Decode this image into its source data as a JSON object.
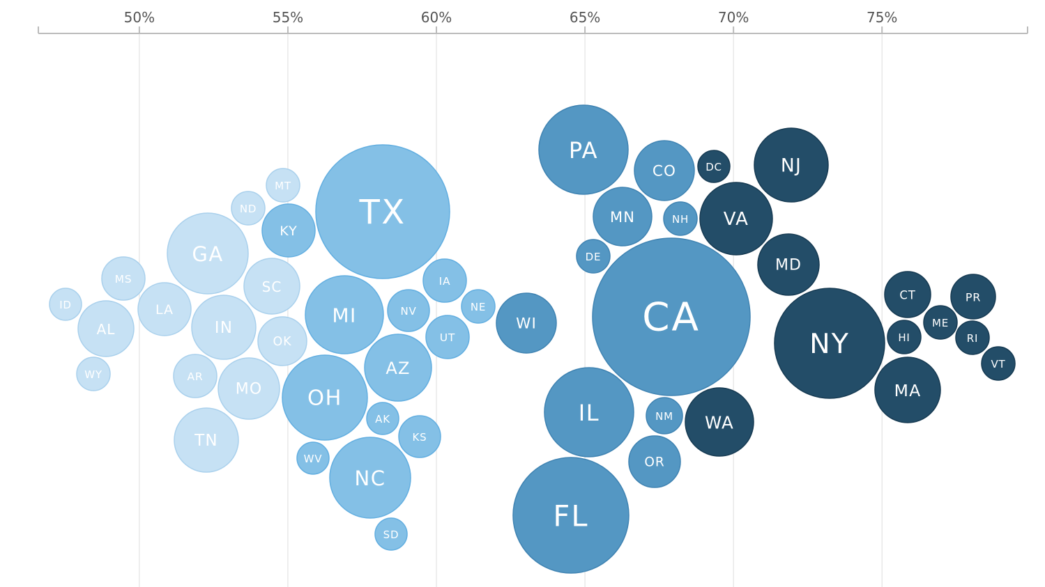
{
  "chart_data": {
    "type": "bubble",
    "title": "",
    "xlabel": "",
    "ylabel": "",
    "x_unit": "%",
    "xlim": [
      46.6,
      79.9
    ],
    "x_ticks": [
      50,
      55,
      60,
      65,
      70,
      75
    ],
    "x_tick_labels": [
      "50%",
      "55%",
      "60%",
      "65%",
      "70%",
      "75%"
    ],
    "grid": true,
    "legend": "none",
    "color_tiers": {
      "lightest": "#c6e1f4",
      "light": "#84c0e6",
      "medium": "#5497c3",
      "dark": "#234d68"
    },
    "points": [
      {
        "label": "ID",
        "x": 47.7,
        "size": 23,
        "tier": "lightest"
      },
      {
        "label": "MS",
        "x": 49.1,
        "size": 31,
        "tier": "lightest"
      },
      {
        "label": "AL",
        "x": 49.0,
        "size": 40,
        "tier": "lightest"
      },
      {
        "label": "WY",
        "x": 48.8,
        "size": 24,
        "tier": "lightest"
      },
      {
        "label": "LA",
        "x": 50.8,
        "size": 38,
        "tier": "lightest"
      },
      {
        "label": "GA",
        "x": 52.3,
        "size": 58,
        "tier": "lightest"
      },
      {
        "label": "IN",
        "x": 52.6,
        "size": 46,
        "tier": "lightest"
      },
      {
        "label": "AR",
        "x": 51.8,
        "size": 31,
        "tier": "lightest"
      },
      {
        "label": "MO",
        "x": 53.5,
        "size": 44,
        "tier": "lightest"
      },
      {
        "label": "TN",
        "x": 52.2,
        "size": 46,
        "tier": "lightest"
      },
      {
        "label": "ND",
        "x": 53.7,
        "size": 24,
        "tier": "lightest"
      },
      {
        "label": "MT",
        "x": 54.8,
        "size": 24,
        "tier": "lightest"
      },
      {
        "label": "SC",
        "x": 54.2,
        "size": 40,
        "tier": "lightest"
      },
      {
        "label": "OK",
        "x": 54.8,
        "size": 35,
        "tier": "lightest"
      },
      {
        "label": "KY",
        "x": 55.0,
        "size": 38,
        "tier": "light"
      },
      {
        "label": "TX",
        "x": 58.0,
        "size": 96,
        "tier": "light"
      },
      {
        "label": "MI",
        "x": 56.9,
        "size": 56,
        "tier": "light"
      },
      {
        "label": "OH",
        "x": 56.2,
        "size": 61,
        "tier": "light"
      },
      {
        "label": "NV",
        "x": 59.1,
        "size": 30,
        "tier": "light"
      },
      {
        "label": "AZ",
        "x": 58.5,
        "size": 48,
        "tier": "light"
      },
      {
        "label": "AK",
        "x": 58.3,
        "size": 23,
        "tier": "light"
      },
      {
        "label": "KS",
        "x": 59.1,
        "size": 30,
        "tier": "light"
      },
      {
        "label": "WV",
        "x": 55.8,
        "size": 23,
        "tier": "light"
      },
      {
        "label": "NC",
        "x": 57.4,
        "size": 58,
        "tier": "light"
      },
      {
        "label": "SD",
        "x": 58.1,
        "size": 23,
        "tier": "light"
      },
      {
        "label": "IA",
        "x": 60.3,
        "size": 31,
        "tier": "light"
      },
      {
        "label": "NE",
        "x": 61.4,
        "size": 24,
        "tier": "light"
      },
      {
        "label": "UT",
        "x": 60.4,
        "size": 31,
        "tier": "light"
      },
      {
        "label": "WI",
        "x": 63.0,
        "size": 43,
        "tier": "medium"
      },
      {
        "label": "PA",
        "x": 65.0,
        "size": 64,
        "tier": "medium"
      },
      {
        "label": "CO",
        "x": 67.7,
        "size": 43,
        "tier": "medium"
      },
      {
        "label": "DC",
        "x": 69.2,
        "size": 23,
        "tier": "dark"
      },
      {
        "label": "MN",
        "x": 66.3,
        "size": 42,
        "tier": "medium"
      },
      {
        "label": "NH",
        "x": 68.3,
        "size": 24,
        "tier": "medium"
      },
      {
        "label": "DE",
        "x": 65.3,
        "size": 24,
        "tier": "medium"
      },
      {
        "label": "CA",
        "x": 67.9,
        "size": 113,
        "tier": "medium"
      },
      {
        "label": "IL",
        "x": 65.1,
        "size": 64,
        "tier": "medium"
      },
      {
        "label": "FL",
        "x": 64.6,
        "size": 83,
        "tier": "medium"
      },
      {
        "label": "NM",
        "x": 67.7,
        "size": 26,
        "tier": "medium"
      },
      {
        "label": "OR",
        "x": 67.4,
        "size": 37,
        "tier": "medium"
      },
      {
        "label": "NJ",
        "x": 71.9,
        "size": 53,
        "tier": "dark"
      },
      {
        "label": "VA",
        "x": 70.1,
        "size": 52,
        "tier": "dark"
      },
      {
        "label": "MD",
        "x": 71.8,
        "size": 44,
        "tier": "dark"
      },
      {
        "label": "WA",
        "x": 69.3,
        "size": 49,
        "tier": "dark"
      },
      {
        "label": "NY",
        "x": 73.2,
        "size": 79,
        "tier": "dark"
      },
      {
        "label": "CT",
        "x": 75.9,
        "size": 33,
        "tier": "dark"
      },
      {
        "label": "HI",
        "x": 75.7,
        "size": 24,
        "tier": "dark"
      },
      {
        "label": "MA",
        "x": 75.9,
        "size": 47,
        "tier": "dark"
      },
      {
        "label": "ME",
        "x": 77.0,
        "size": 24,
        "tier": "dark"
      },
      {
        "label": "PR",
        "x": 78.1,
        "size": 32,
        "tier": "dark"
      },
      {
        "label": "RI",
        "x": 78.1,
        "size": 24,
        "tier": "dark"
      },
      {
        "label": "VT",
        "x": 78.9,
        "size": 24,
        "tier": "dark"
      }
    ]
  }
}
